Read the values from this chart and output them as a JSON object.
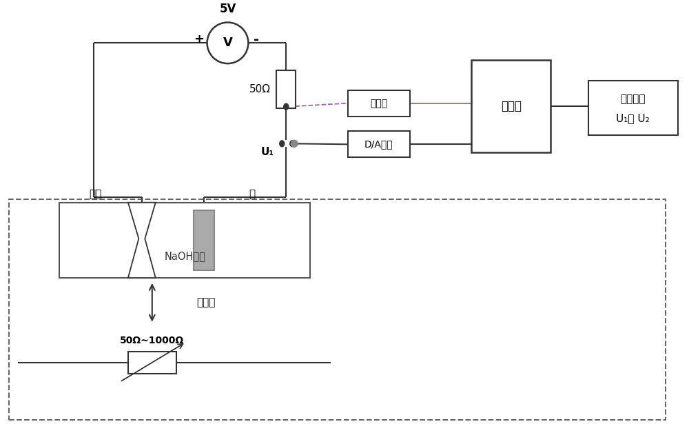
{
  "bg_color": "#ffffff",
  "lc": "#333333",
  "dlc": "#9966aa",
  "glc": "#aaaaaa",
  "voltage_label": "5V",
  "resistor_label": "50Ω",
  "relay_label": "继电器",
  "da_label": "D/A转换",
  "mcu_label": "单片机",
  "lcd_line1": "液晶显示",
  "lcd_line2": "U₁， U₂",
  "tungsten_label": "销丝",
  "copper_label": "铜",
  "naoh_label": "NaOH溶液",
  "equiv_label": "等价于",
  "var_res_label": "50Ω~1000Ω",
  "u1_label": "U₁"
}
